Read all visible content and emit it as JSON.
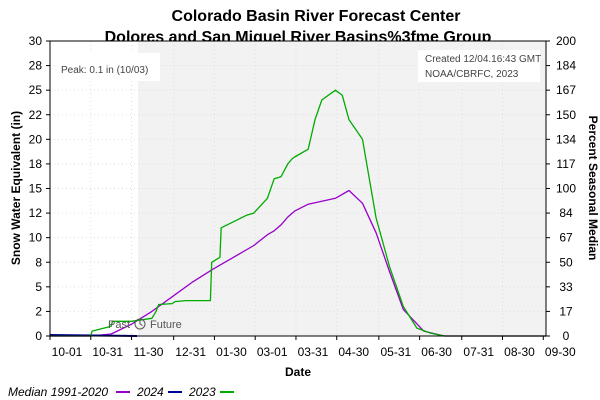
{
  "chart_data": {
    "type": "line",
    "title": "Colorado Basin River Forecast Center",
    "subtitle": "Dolores and San Miguel River Basins%3fme Group",
    "xlabel": "Date",
    "ylabel": "Snow Water Equivalent (in)",
    "ylabel_right": "Percent Seasonal Median",
    "ylim": [
      0,
      30
    ],
    "ylim_right": [
      0,
      200
    ],
    "y_ticks": [
      "0",
      "2",
      "5",
      "8",
      "10",
      "12",
      "15",
      "18",
      "20",
      "22",
      "25",
      "28",
      "30"
    ],
    "y_right_ticks": [
      "0",
      "17",
      "33",
      "50",
      "67",
      "84",
      "100",
      "117",
      "134",
      "150",
      "167",
      "184",
      "200"
    ],
    "x_ticks": [
      "10-01",
      "10-31",
      "11-30",
      "12-31",
      "01-30",
      "03-01",
      "03-31",
      "04-30",
      "05-31",
      "06-30",
      "07-31",
      "08-30",
      "09-30"
    ],
    "peak_note": "Peak: 0.1 in (10/03)",
    "created_note": "Created 12/04.16:43 GMT",
    "credit_note": "NOAA/CBRFC, 2023",
    "past_label": "Past",
    "future_label": "Future",
    "grid": true,
    "legend_position": "bottom-left",
    "series": [
      {
        "name": "Median 1991-2020",
        "color": "#9900cc",
        "x": [
          0,
          15,
          30,
          45,
          60,
          75,
          90,
          105,
          120,
          135,
          150,
          160,
          165,
          170,
          175,
          180,
          190,
          200,
          210,
          220,
          230,
          240,
          250,
          260,
          275,
          290,
          300,
          365
        ],
        "values": [
          0,
          0,
          0,
          0.2,
          1.2,
          2.5,
          4,
          5.5,
          6.8,
          8,
          9.2,
          10.3,
          10.7,
          11.3,
          12.1,
          12.7,
          13.4,
          13.7,
          14.0,
          14.8,
          13.5,
          10.5,
          6.5,
          2.7,
          0.5,
          0,
          0,
          0
        ]
      },
      {
        "name": "2024",
        "color": "#000099",
        "x": [
          0,
          64
        ],
        "values": [
          0.1,
          0
        ]
      },
      {
        "name": "2023",
        "color": "#00aa00",
        "x": [
          0,
          30,
          31,
          45,
          46,
          60,
          75,
          78,
          80,
          90,
          92,
          100,
          110,
          118,
          119,
          125,
          126,
          145,
          150,
          160,
          165,
          170,
          175,
          178,
          180,
          190,
          195,
          200,
          210,
          215,
          220,
          225,
          230,
          235,
          240,
          250,
          260,
          270,
          280,
          290,
          300,
          365
        ],
        "values": [
          0,
          0,
          0.5,
          1,
          1.5,
          1.5,
          1.8,
          2.5,
          3.2,
          3.3,
          3.5,
          3.6,
          3.6,
          3.6,
          7.5,
          8,
          11,
          12.3,
          12.5,
          14,
          16,
          16.2,
          17.5,
          18,
          18.2,
          19,
          22,
          24,
          25,
          24.5,
          22,
          21,
          20,
          16,
          12,
          7,
          3,
          0.8,
          0.3,
          0,
          0,
          0
        ]
      }
    ]
  }
}
